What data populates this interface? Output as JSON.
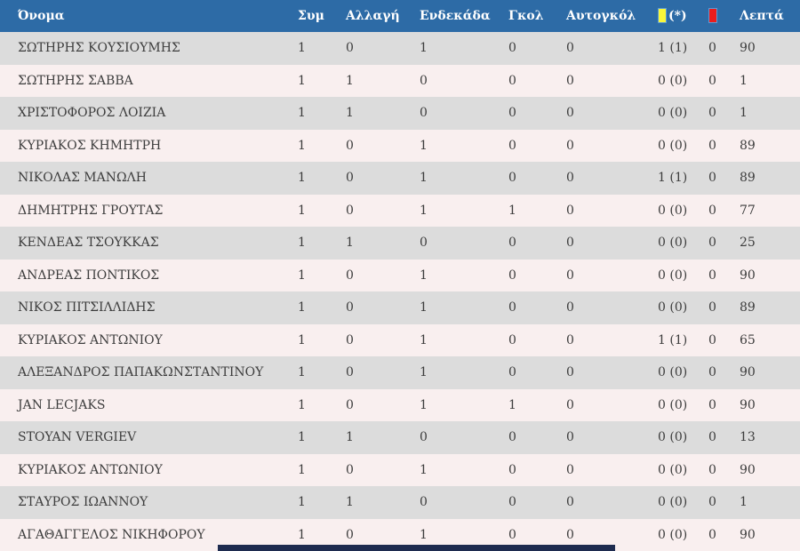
{
  "table": {
    "columns": [
      {
        "key": "name",
        "label": "Όνομα"
      },
      {
        "key": "sym",
        "label": "Συμ"
      },
      {
        "key": "allagi",
        "label": "Αλλαγή"
      },
      {
        "key": "endekada",
        "label": "Ενδεκάδα"
      },
      {
        "key": "gkol",
        "label": "Γκολ"
      },
      {
        "key": "autogkol",
        "label": "Αυτογκόλ"
      },
      {
        "key": "yellow",
        "label": "(*)",
        "icon": "yellow-card"
      },
      {
        "key": "red",
        "label": "",
        "icon": "red-card"
      },
      {
        "key": "lepta",
        "label": "Λεπτά"
      }
    ],
    "rows": [
      {
        "name": "ΣΩΤΗΡΗΣ ΚΟΥΣΙΟΥΜΗΣ",
        "sym": "1",
        "allagi": "0",
        "endekada": "1",
        "gkol": "0",
        "autogkol": "0",
        "yellow": "1 (1)",
        "red": "0",
        "lepta": "90"
      },
      {
        "name": "ΣΩΤΗΡΗΣ ΣΑΒΒΑ",
        "sym": "1",
        "allagi": "1",
        "endekada": "0",
        "gkol": "0",
        "autogkol": "0",
        "yellow": "0 (0)",
        "red": "0",
        "lepta": "1"
      },
      {
        "name": "ΧΡΙΣΤΟΦΟΡΟΣ ΛΟΙΖΙΑ",
        "sym": "1",
        "allagi": "1",
        "endekada": "0",
        "gkol": "0",
        "autogkol": "0",
        "yellow": "0 (0)",
        "red": "0",
        "lepta": "1"
      },
      {
        "name": "ΚΥΡΙΑΚΟΣ ΚΗΜΗΤΡΗ",
        "sym": "1",
        "allagi": "0",
        "endekada": "1",
        "gkol": "0",
        "autogkol": "0",
        "yellow": "0 (0)",
        "red": "0",
        "lepta": "89"
      },
      {
        "name": "ΝΙΚΟΛΑΣ ΜΑΝΩΛΗ",
        "sym": "1",
        "allagi": "0",
        "endekada": "1",
        "gkol": "0",
        "autogkol": "0",
        "yellow": "1 (1)",
        "red": "0",
        "lepta": "89"
      },
      {
        "name": "ΔΗΜΗΤΡΗΣ ΓΡΟΥΤΑΣ",
        "sym": "1",
        "allagi": "0",
        "endekada": "1",
        "gkol": "1",
        "autogkol": "0",
        "yellow": "0 (0)",
        "red": "0",
        "lepta": "77"
      },
      {
        "name": "ΚΕΝΔΕΑΣ ΤΣΟΥΚΚΑΣ",
        "sym": "1",
        "allagi": "1",
        "endekada": "0",
        "gkol": "0",
        "autogkol": "0",
        "yellow": "0 (0)",
        "red": "0",
        "lepta": "25"
      },
      {
        "name": "ΑΝΔΡΕΑΣ ΠΟΝΤΙΚΟΣ",
        "sym": "1",
        "allagi": "0",
        "endekada": "1",
        "gkol": "0",
        "autogkol": "0",
        "yellow": "0 (0)",
        "red": "0",
        "lepta": "90"
      },
      {
        "name": "ΝΙΚΟΣ ΠΙΤΣΙΛΛΙΔΗΣ",
        "sym": "1",
        "allagi": "0",
        "endekada": "1",
        "gkol": "0",
        "autogkol": "0",
        "yellow": "0 (0)",
        "red": "0",
        "lepta": "89"
      },
      {
        "name": "ΚΥΡΙΑΚΟΣ ΑΝΤΩΝΙΟΥ",
        "sym": "1",
        "allagi": "0",
        "endekada": "1",
        "gkol": "0",
        "autogkol": "0",
        "yellow": "1 (1)",
        "red": "0",
        "lepta": "65"
      },
      {
        "name": "ΑΛΕΞΑΝΔΡΟΣ ΠΑΠΑΚΩΝΣΤΑΝΤΙΝΟΥ",
        "sym": "1",
        "allagi": "0",
        "endekada": "1",
        "gkol": "0",
        "autogkol": "0",
        "yellow": "0 (0)",
        "red": "0",
        "lepta": "90"
      },
      {
        "name": "JAN LECJAKS",
        "sym": "1",
        "allagi": "0",
        "endekada": "1",
        "gkol": "1",
        "autogkol": "0",
        "yellow": "0 (0)",
        "red": "0",
        "lepta": "90"
      },
      {
        "name": "STOYAN VERGIEV",
        "sym": "1",
        "allagi": "1",
        "endekada": "0",
        "gkol": "0",
        "autogkol": "0",
        "yellow": "0 (0)",
        "red": "0",
        "lepta": "13"
      },
      {
        "name": "ΚΥΡΙΑΚΟΣ ΑΝΤΩΝΙΟΥ",
        "sym": "1",
        "allagi": "0",
        "endekada": "1",
        "gkol": "0",
        "autogkol": "0",
        "yellow": "0 (0)",
        "red": "0",
        "lepta": "90"
      },
      {
        "name": "ΣΤΑΥΡΟΣ ΙΩΑΝΝΟΥ",
        "sym": "1",
        "allagi": "1",
        "endekada": "0",
        "gkol": "0",
        "autogkol": "0",
        "yellow": "0 (0)",
        "red": "0",
        "lepta": "1"
      },
      {
        "name": "ΑΓΑΘΑΓΓΕΛΟΣ ΝΙΚΗΦΟΡΟΥ",
        "sym": "1",
        "allagi": "0",
        "endekada": "1",
        "gkol": "0",
        "autogkol": "0",
        "yellow": "0 (0)",
        "red": "0",
        "lepta": "90"
      }
    ]
  },
  "icons": {
    "yellow_card": "yellow-card-icon",
    "red_card": "red-card-icon"
  },
  "colors": {
    "header_bg": "#2d6ba6",
    "header_text": "#ffffff",
    "row_odd": "#dcdcdc",
    "row_even": "#f9efef",
    "text": "#3d3d3d",
    "yellow_card": "#f9f63a",
    "red_card": "#ea1c1c",
    "bottom_bar": "#1e2b4f"
  }
}
